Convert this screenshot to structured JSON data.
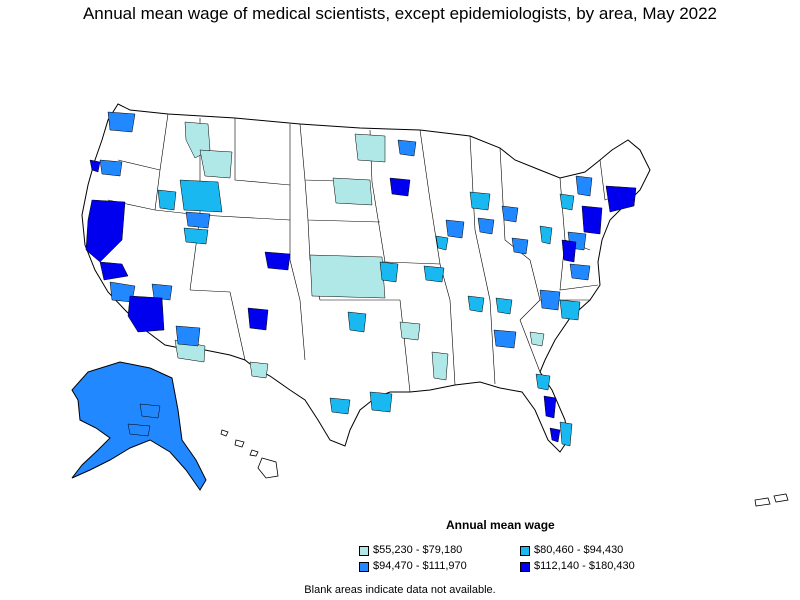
{
  "title": "Annual mean wage of medical scientists, except epidemiologists, by area, May 2022",
  "legend": {
    "title": "Annual mean wage",
    "items": [
      {
        "label": "$55,230 - $79,180",
        "color": "#b0e8e8"
      },
      {
        "label": "$80,460 - $94,430",
        "color": "#1ab8f0"
      },
      {
        "label": "$94,470 - $111,970",
        "color": "#2288ff"
      },
      {
        "label": "$112,140 - $180,430",
        "color": "#0000ee"
      }
    ]
  },
  "footnote": "Blank areas indicate data not available.",
  "colors": {
    "no_data": "#ffffff",
    "border": "#000000"
  }
}
